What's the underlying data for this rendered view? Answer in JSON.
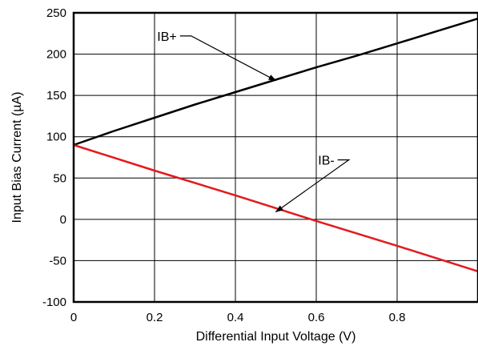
{
  "chart_data": {
    "type": "line",
    "title": "",
    "xlabel": "Differential Input Voltage (V)",
    "ylabel": "Input Bias Current (µA)",
    "xlim": [
      0,
      1.0
    ],
    "ylim": [
      -100,
      250
    ],
    "xticks": [
      0,
      0.2,
      0.4,
      0.6,
      0.8
    ],
    "xtick_labels": [
      "0",
      "0.2",
      "0.4",
      "0.6",
      "0.8"
    ],
    "yticks": [
      -100,
      -50,
      0,
      50,
      100,
      150,
      200,
      250
    ],
    "ytick_labels": [
      "-100",
      "-50",
      "0",
      "50",
      "100",
      "150",
      "200",
      "250"
    ],
    "grid": true,
    "series": [
      {
        "name": "IB+",
        "color": "#000000",
        "x": [
          0,
          0.1,
          0.2,
          0.3,
          0.4,
          0.5,
          0.6,
          0.7,
          0.8,
          0.9,
          1.0
        ],
        "y": [
          90,
          107,
          123,
          139,
          154,
          169,
          184,
          198,
          213,
          228,
          243
        ]
      },
      {
        "name": "IB-",
        "color": "#e41a1c",
        "x": [
          0,
          0.2,
          0.4,
          0.6,
          0.8,
          1.0
        ],
        "y": [
          90,
          59,
          29,
          -2,
          -32,
          -63
        ]
      }
    ],
    "annotations": [
      {
        "text": "IB+",
        "series": 0,
        "label_at": [
          0.255,
          222
        ],
        "arrow_to": [
          0.5,
          168
        ]
      },
      {
        "text": "IB-",
        "series": 1,
        "label_at": [
          0.645,
          72
        ],
        "arrow_to": [
          0.5,
          9
        ]
      }
    ]
  }
}
